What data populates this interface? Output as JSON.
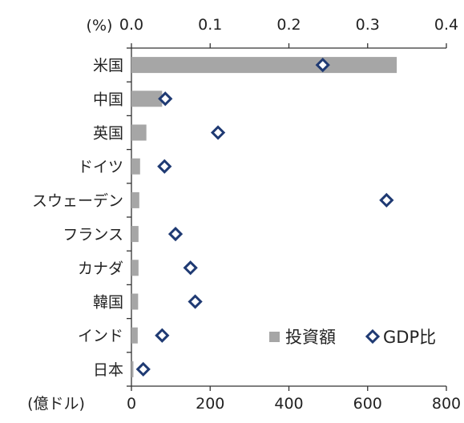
{
  "chart_data": {
    "type": "bar",
    "orientation": "horizontal",
    "categories": [
      "米国",
      "中国",
      "英国",
      "ドイツ",
      "スウェーデン",
      "フランス",
      "カナダ",
      "韓国",
      "インド",
      "日本"
    ],
    "series": [
      {
        "name": "投資額",
        "type": "bar",
        "axis": "bottom",
        "color": "#a6a6a6",
        "values": [
          674,
          78,
          38,
          22,
          20,
          18,
          18,
          17,
          16,
          5
        ]
      },
      {
        "name": "GDP比",
        "type": "scatter",
        "marker": "diamond",
        "axis": "top",
        "color": "#1f3a73",
        "values": [
          0.243,
          0.043,
          0.11,
          0.042,
          0.324,
          0.056,
          0.075,
          0.081,
          0.039,
          0.015
        ]
      }
    ],
    "bottom_axis": {
      "unit": "(億ドル)",
      "range": [
        0,
        800
      ],
      "ticks": [
        "0",
        "200",
        "400",
        "600",
        "800"
      ]
    },
    "top_axis": {
      "unit": "(%)",
      "range": [
        0,
        0.4
      ],
      "ticks": [
        "0.0",
        "0.1",
        "0.2",
        "0.3",
        "0.4"
      ]
    },
    "grid": false,
    "legend_position": "bottom-right"
  }
}
